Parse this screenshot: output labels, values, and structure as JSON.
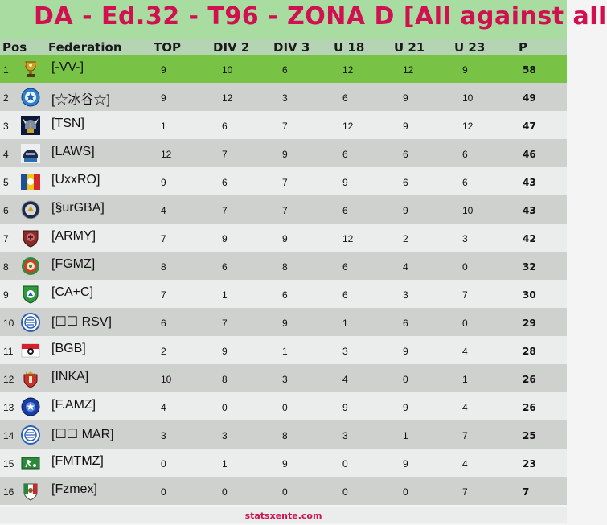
{
  "title": "DA - Ed.32 - T96 - ZONA D  [All against all",
  "columns": {
    "pos": "Pos",
    "federation": "Federation",
    "top": "TOP",
    "div2": "DIV 2",
    "div3": "DIV 3",
    "u18": "U 18",
    "u21": "U 21",
    "u23": "U 23",
    "p": "P"
  },
  "rows": [
    {
      "pos": "1",
      "fed": "[-VV-]",
      "top": "9",
      "div2": "10",
      "div3": "6",
      "u18": "12",
      "u21": "12",
      "u23": "9",
      "p": "58",
      "logo": "trophy-logo-icon"
    },
    {
      "pos": "2",
      "fed": "[☆冰谷☆]",
      "top": "9",
      "div2": "12",
      "div3": "3",
      "u18": "6",
      "u21": "9",
      "u23": "10",
      "p": "49",
      "logo": "blue-star-badge-icon"
    },
    {
      "pos": "3",
      "fed": "[TSN]",
      "top": "1",
      "div2": "6",
      "div3": "7",
      "u18": "12",
      "u21": "9",
      "u23": "12",
      "p": "47",
      "logo": "viking-helmet-logo-icon"
    },
    {
      "pos": "4",
      "fed": "[LAWS]",
      "top": "12",
      "div2": "7",
      "div3": "9",
      "u18": "6",
      "u21": "6",
      "u23": "6",
      "p": "46",
      "logo": "helmet-logo-icon"
    },
    {
      "pos": "5",
      "fed": "[UxxRO]",
      "top": "9",
      "div2": "6",
      "div3": "7",
      "u18": "9",
      "u21": "6",
      "u23": "6",
      "p": "43",
      "logo": "colorful-square-logo-icon"
    },
    {
      "pos": "6",
      "fed": "[§urGBA]",
      "top": "4",
      "div2": "7",
      "div3": "7",
      "u18": "6",
      "u21": "9",
      "u23": "10",
      "p": "43",
      "logo": "round-emblem-icon"
    },
    {
      "pos": "7",
      "fed": "[ARMY]",
      "top": "7",
      "div2": "9",
      "div3": "9",
      "u18": "12",
      "u21": "2",
      "u23": "3",
      "p": "42",
      "logo": "army-shield-icon"
    },
    {
      "pos": "8",
      "fed": "[FGMZ]",
      "top": "8",
      "div2": "6",
      "div3": "8",
      "u18": "6",
      "u21": "4",
      "u23": "0",
      "p": "32",
      "logo": "green-red-crest-icon"
    },
    {
      "pos": "9",
      "fed": "[CA+C]",
      "top": "7",
      "div2": "1",
      "div3": "6",
      "u18": "6",
      "u21": "3",
      "u23": "7",
      "p": "30",
      "logo": "green-shield-icon"
    },
    {
      "pos": "10",
      "fed": "[☐☐ RSV]",
      "top": "6",
      "div2": "7",
      "div3": "9",
      "u18": "1",
      "u21": "6",
      "u23": "0",
      "p": "29",
      "logo": "blue-ring-crest-icon"
    },
    {
      "pos": "11",
      "fed": "[BGB]",
      "top": "2",
      "div2": "9",
      "div3": "1",
      "u18": "3",
      "u21": "9",
      "u23": "4",
      "p": "28",
      "logo": "red-white-flag-icon"
    },
    {
      "pos": "12",
      "fed": "[INKA]",
      "top": "10",
      "div2": "8",
      "div3": "3",
      "u18": "4",
      "u21": "0",
      "u23": "1",
      "p": "26",
      "logo": "red-crown-shield-icon"
    },
    {
      "pos": "13",
      "fed": "[F.AMZ]",
      "top": "4",
      "div2": "0",
      "div3": "0",
      "u18": "9",
      "u21": "9",
      "u23": "4",
      "p": "26",
      "logo": "blue-circle-crest-icon"
    },
    {
      "pos": "14",
      "fed": "[☐☐ MAR]",
      "top": "3",
      "div2": "3",
      "div3": "8",
      "u18": "3",
      "u21": "1",
      "u23": "7",
      "p": "25",
      "logo": "blue-ring-crest-icon"
    },
    {
      "pos": "15",
      "fed": "[FMTMZ]",
      "top": "0",
      "div2": "1",
      "div3": "9",
      "u18": "0",
      "u21": "9",
      "u23": "4",
      "p": "23",
      "logo": "green-player-badge-icon"
    },
    {
      "pos": "16",
      "fed": "[Fzmex]",
      "top": "0",
      "div2": "0",
      "div3": "0",
      "u18": "0",
      "u21": "0",
      "u23": "7",
      "p": "7",
      "logo": "mexico-crest-icon"
    }
  ],
  "footer": "statsxente.com",
  "colors": {
    "title": "#d01050",
    "title_bg": "#a8dca0",
    "header_bg": "#b4d4b4",
    "leader": "#78c346",
    "row_light": "#ebecec",
    "row_dark": "#cfd1cf"
  }
}
